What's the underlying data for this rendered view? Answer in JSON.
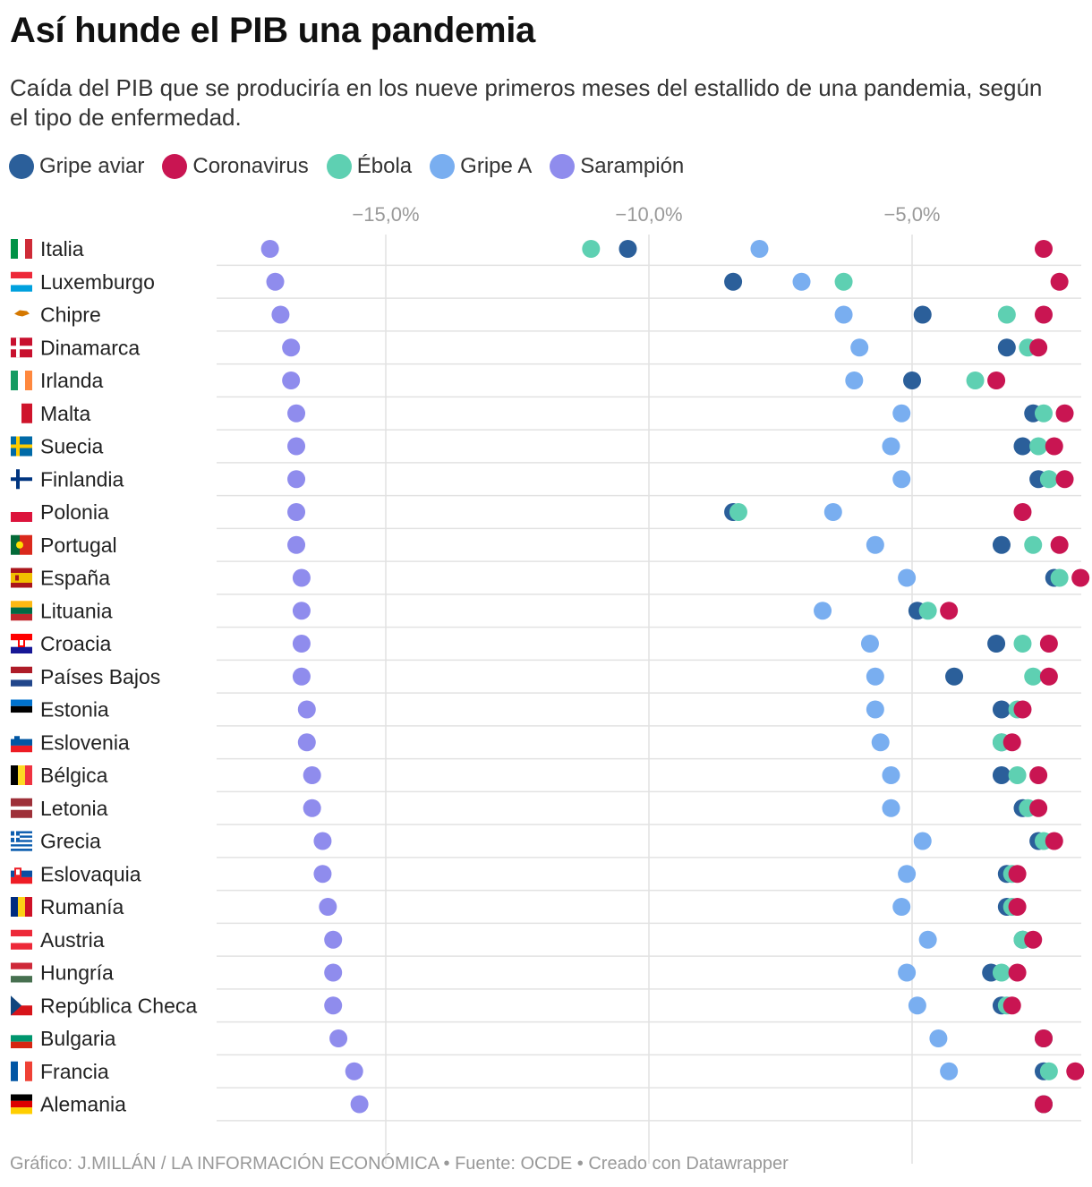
{
  "chart_data": {
    "type": "scatter",
    "title": "Así hunde el PIB una pandemia",
    "subtitle": "Caída del PIB que se produciría en los nueve primeros meses del estallido de una pandemia, según el tipo de enfermedad.",
    "xlim": [
      -18.2,
      -1.7
    ],
    "x_ticks": [
      -15,
      -10,
      -5
    ],
    "x_tick_labels": [
      "−15,0%",
      "−10,0%",
      "−5,0%"
    ],
    "grid": true,
    "legend_position": "top-left",
    "series": [
      {
        "name": "Gripe aviar",
        "color": "#2b5f9a"
      },
      {
        "name": "Coronavirus",
        "color": "#c91552"
      },
      {
        "name": "Ébola",
        "color": "#5ed0b2"
      },
      {
        "name": "Gripe A",
        "color": "#79aef0"
      },
      {
        "name": "Sarampión",
        "color": "#8f8ced"
      }
    ],
    "draw_order": [
      "Sarampión",
      "Gripe A",
      "Gripe aviar",
      "Ébola",
      "Coronavirus"
    ],
    "countries": [
      {
        "name": "Italia",
        "flag": "italy",
        "values": {
          "Gripe aviar": -10.4,
          "Coronavirus": -2.5,
          "Ébola": -11.1,
          "Gripe A": -7.9,
          "Sarampión": -17.2
        }
      },
      {
        "name": "Luxemburgo",
        "flag": "luxembourg",
        "values": {
          "Gripe aviar": -8.4,
          "Coronavirus": -2.2,
          "Ébola": -6.3,
          "Gripe A": -7.1,
          "Sarampión": -17.1
        }
      },
      {
        "name": "Chipre",
        "flag": "cyprus",
        "values": {
          "Gripe aviar": -4.8,
          "Coronavirus": -2.5,
          "Ébola": -3.2,
          "Gripe A": -6.3,
          "Sarampión": -17.0
        }
      },
      {
        "name": "Dinamarca",
        "flag": "denmark",
        "values": {
          "Gripe aviar": -3.2,
          "Coronavirus": -2.6,
          "Ébola": -2.8,
          "Gripe A": -6.0,
          "Sarampión": -16.8
        }
      },
      {
        "name": "Irlanda",
        "flag": "ireland",
        "values": {
          "Gripe aviar": -5.0,
          "Coronavirus": -3.4,
          "Ébola": -3.8,
          "Gripe A": -6.1,
          "Sarampión": -16.8
        }
      },
      {
        "name": "Malta",
        "flag": "malta",
        "values": {
          "Gripe aviar": -2.7,
          "Coronavirus": -2.1,
          "Ébola": -2.5,
          "Gripe A": -5.2,
          "Sarampión": -16.7
        }
      },
      {
        "name": "Suecia",
        "flag": "sweden",
        "values": {
          "Gripe aviar": -2.9,
          "Coronavirus": -2.3,
          "Ébola": -2.6,
          "Gripe A": -5.4,
          "Sarampión": -16.7
        }
      },
      {
        "name": "Finlandia",
        "flag": "finland",
        "values": {
          "Gripe aviar": -2.6,
          "Coronavirus": -2.1,
          "Ébola": -2.4,
          "Gripe A": -5.2,
          "Sarampión": -16.7
        }
      },
      {
        "name": "Polonia",
        "flag": "poland",
        "values": {
          "Gripe aviar": -8.4,
          "Coronavirus": -2.9,
          "Ébola": -8.3,
          "Gripe A": -6.5,
          "Sarampión": -16.7
        }
      },
      {
        "name": "Portugal",
        "flag": "portugal",
        "values": {
          "Gripe aviar": -3.3,
          "Coronavirus": -2.2,
          "Ébola": -2.7,
          "Gripe A": -5.7,
          "Sarampión": -16.7
        }
      },
      {
        "name": "España",
        "flag": "spain",
        "values": {
          "Gripe aviar": -2.3,
          "Coronavirus": -1.8,
          "Ébola": -2.2,
          "Gripe A": -5.1,
          "Sarampión": -16.6
        }
      },
      {
        "name": "Lituania",
        "flag": "lithuania",
        "values": {
          "Gripe aviar": -4.9,
          "Coronavirus": -4.3,
          "Ébola": -4.7,
          "Gripe A": -6.7,
          "Sarampión": -16.6
        }
      },
      {
        "name": "Croacia",
        "flag": "croatia",
        "values": {
          "Gripe aviar": -3.4,
          "Coronavirus": -2.4,
          "Ébola": -2.9,
          "Gripe A": -5.8,
          "Sarampión": -16.6
        }
      },
      {
        "name": "Países Bajos",
        "flag": "netherlands",
        "values": {
          "Gripe aviar": -4.2,
          "Coronavirus": -2.4,
          "Ébola": -2.7,
          "Gripe A": -5.7,
          "Sarampión": -16.6
        }
      },
      {
        "name": "Estonia",
        "flag": "estonia",
        "values": {
          "Gripe aviar": -3.3,
          "Coronavirus": -2.9,
          "Ébola": -3.0,
          "Gripe A": -5.7,
          "Sarampión": -16.5
        }
      },
      {
        "name": "Eslovenia",
        "flag": "slovenia",
        "values": {
          "Gripe aviar": -3.3,
          "Coronavirus": -3.1,
          "Ébola": -3.3,
          "Gripe A": -5.6,
          "Sarampión": -16.5
        }
      },
      {
        "name": "Bélgica",
        "flag": "belgium",
        "values": {
          "Gripe aviar": -3.3,
          "Coronavirus": -2.6,
          "Ébola": -3.0,
          "Gripe A": -5.4,
          "Sarampión": -16.4
        }
      },
      {
        "name": "Letonia",
        "flag": "latvia",
        "values": {
          "Gripe aviar": -2.9,
          "Coronavirus": -2.6,
          "Ébola": -2.8,
          "Gripe A": -5.4,
          "Sarampión": -16.4
        }
      },
      {
        "name": "Grecia",
        "flag": "greece",
        "values": {
          "Gripe aviar": -2.6,
          "Coronavirus": -2.3,
          "Ébola": -2.5,
          "Gripe A": -4.8,
          "Sarampión": -16.2
        }
      },
      {
        "name": "Eslovaquia",
        "flag": "slovakia",
        "values": {
          "Gripe aviar": -3.2,
          "Coronavirus": -3.0,
          "Ébola": -3.1,
          "Gripe A": -5.1,
          "Sarampión": -16.2
        }
      },
      {
        "name": "Rumanía",
        "flag": "romania",
        "values": {
          "Gripe aviar": -3.2,
          "Coronavirus": -3.0,
          "Ébola": -3.1,
          "Gripe A": -5.2,
          "Sarampión": -16.1
        }
      },
      {
        "name": "Austria",
        "flag": "austria",
        "values": {
          "Gripe aviar": -2.9,
          "Coronavirus": -2.7,
          "Ébola": -2.9,
          "Gripe A": -4.7,
          "Sarampión": -16.0
        }
      },
      {
        "name": "Hungría",
        "flag": "hungary",
        "values": {
          "Gripe aviar": -3.5,
          "Coronavirus": -3.0,
          "Ébola": -3.3,
          "Gripe A": -5.1,
          "Sarampión": -16.0
        }
      },
      {
        "name": "República Checa",
        "flag": "czech",
        "values": {
          "Gripe aviar": -3.3,
          "Coronavirus": -3.1,
          "Ébola": -3.2,
          "Gripe A": -4.9,
          "Sarampión": -16.0
        }
      },
      {
        "name": "Bulgaria",
        "flag": "bulgaria",
        "values": {
          "Gripe aviar": -2.5,
          "Coronavirus": -2.5,
          "Ébola": -2.5,
          "Gripe A": -4.5,
          "Sarampión": -15.9
        }
      },
      {
        "name": "Francia",
        "flag": "france",
        "values": {
          "Gripe aviar": -2.5,
          "Coronavirus": -1.9,
          "Ébola": -2.4,
          "Gripe A": -4.3,
          "Sarampión": -15.6
        }
      },
      {
        "name": "Alemania",
        "flag": "germany",
        "values": {
          "Gripe aviar": -2.5,
          "Coronavirus": -2.5,
          "Ébola": -2.5,
          "Gripe A": -2.5,
          "Sarampión": -15.5
        }
      }
    ]
  },
  "footer": "Gráfico: J.MILLÁN / LA INFORMACIÓN ECONÓMICA • Fuente: OCDE • Creado con Datawrapper"
}
